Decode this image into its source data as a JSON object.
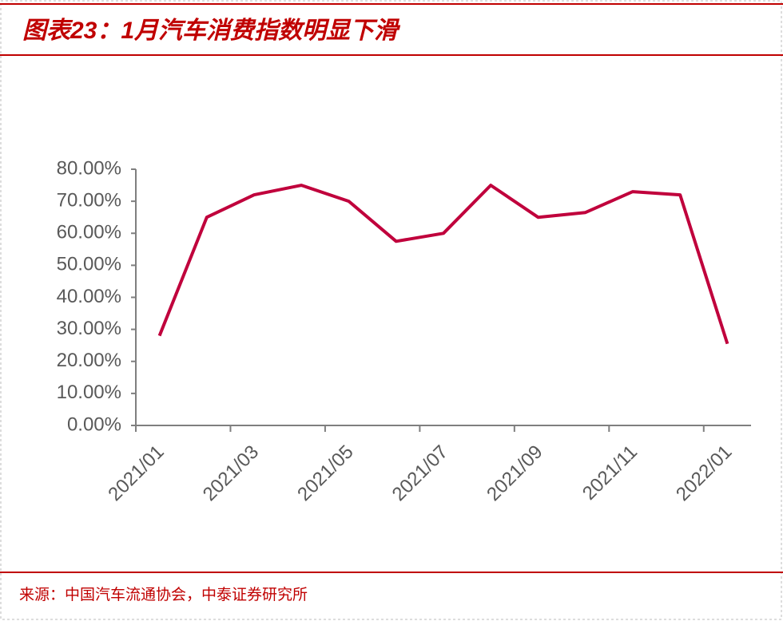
{
  "chart_data": {
    "type": "line",
    "title": "图表23：1月汽车消费指数明显下滑",
    "source": "来源：中国汽车流通协会，中泰证券研究所",
    "categories": [
      "2021/01",
      null,
      "2021/03",
      null,
      "2021/05",
      null,
      "2021/07",
      null,
      "2021/09",
      null,
      "2021/11",
      null,
      "2022/01"
    ],
    "series": [
      {
        "color": "#c0003c",
        "values": [
          28,
          65,
          72,
          75,
          70,
          57.5,
          60,
          75,
          65,
          66.5,
          73,
          72,
          25.5
        ]
      }
    ],
    "ylim": [
      0,
      80
    ],
    "yticks": [
      {
        "value": 0,
        "label": "0.00%"
      },
      {
        "value": 10,
        "label": "10.00%"
      },
      {
        "value": 20,
        "label": "20.00%"
      },
      {
        "value": 30,
        "label": "30.00%"
      },
      {
        "value": 40,
        "label": "40.00%"
      },
      {
        "value": 50,
        "label": "50.00%"
      },
      {
        "value": 60,
        "label": "60.00%"
      },
      {
        "value": 70,
        "label": "70.00%"
      },
      {
        "value": 80,
        "label": "80.00%"
      }
    ]
  }
}
